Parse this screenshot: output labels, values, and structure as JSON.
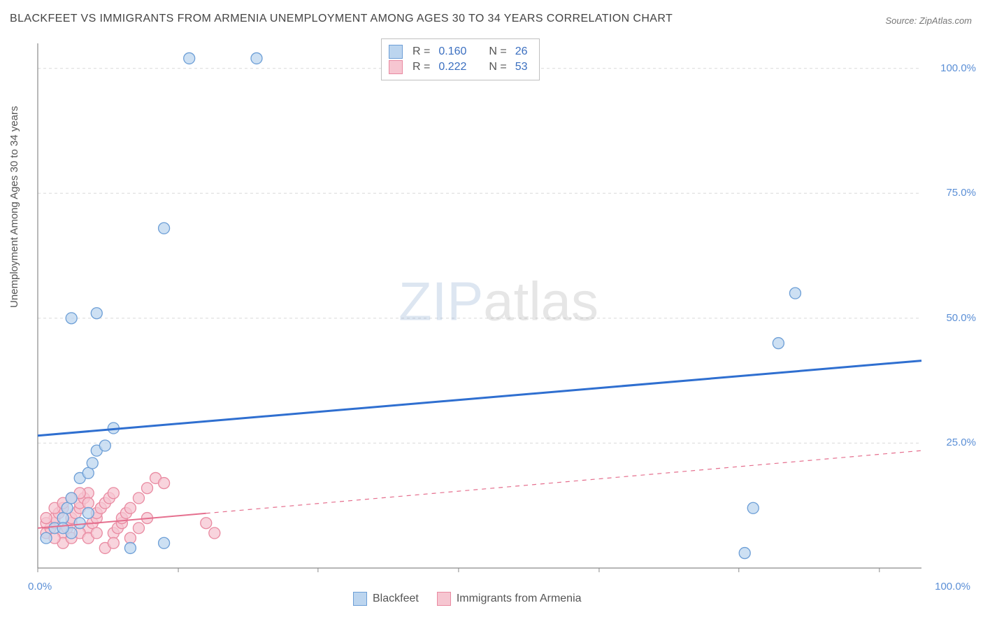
{
  "title": "BLACKFEET VS IMMIGRANTS FROM ARMENIA UNEMPLOYMENT AMONG AGES 30 TO 34 YEARS CORRELATION CHART",
  "source": "Source: ZipAtlas.com",
  "y_axis_label": "Unemployment Among Ages 30 to 34 years",
  "watermark_a": "ZIP",
  "watermark_b": "atlas",
  "chart": {
    "type": "scatter",
    "background_color": "#ffffff",
    "grid_color": "#d9d9d9",
    "axis_color": "#8a8a8a",
    "xlim": [
      0,
      105
    ],
    "ylim": [
      0,
      105
    ],
    "y_ticks": [
      25,
      50,
      75,
      100
    ],
    "y_tick_labels": [
      "25.0%",
      "50.0%",
      "75.0%",
      "100.0%"
    ],
    "x_corner_labels": [
      "0.0%",
      "100.0%"
    ],
    "x_minor_ticks": [
      0,
      16.7,
      33.3,
      50,
      66.7,
      83.3,
      100
    ],
    "tick_label_color": "#5b8fd6",
    "tick_label_fontsize": 15,
    "marker_radius": 8,
    "series": [
      {
        "name": "Blackfeet",
        "fill": "#bcd5ef",
        "stroke": "#6c9ed6",
        "swatch_fill": "#bcd5ef",
        "swatch_stroke": "#6c9ed6",
        "R": "0.160",
        "N": "26",
        "trend": {
          "x1": 0,
          "y1": 26.5,
          "x2": 105,
          "y2": 41.5,
          "solid_until_x": 105,
          "color": "#2f6fd0",
          "width": 3
        },
        "points": [
          [
            1,
            6
          ],
          [
            2,
            8
          ],
          [
            3,
            10
          ],
          [
            3.5,
            12
          ],
          [
            4,
            14
          ],
          [
            5,
            18
          ],
          [
            6,
            19
          ],
          [
            6.5,
            21
          ],
          [
            7,
            23.5
          ],
          [
            8,
            24.5
          ],
          [
            9,
            28
          ],
          [
            4,
            50
          ],
          [
            7,
            51
          ],
          [
            15,
            68
          ],
          [
            18,
            102
          ],
          [
            26,
            102
          ],
          [
            11,
            4
          ],
          [
            15,
            5
          ],
          [
            84,
            3
          ],
          [
            85,
            12
          ],
          [
            88,
            45
          ],
          [
            90,
            55
          ],
          [
            5,
            9
          ],
          [
            6,
            11
          ],
          [
            4,
            7
          ],
          [
            3,
            8
          ]
        ]
      },
      {
        "name": "Immigrants from Armenia",
        "fill": "#f6c6d1",
        "stroke": "#e98aa1",
        "swatch_fill": "#f6c6d1",
        "swatch_stroke": "#e98aa1",
        "R": "0.222",
        "N": "53",
        "trend": {
          "x1": 0,
          "y1": 8,
          "x2": 105,
          "y2": 23.5,
          "solid_until_x": 20,
          "color": "#e56f8e",
          "width": 2
        },
        "points": [
          [
            1,
            7
          ],
          [
            1.5,
            8
          ],
          [
            2,
            9
          ],
          [
            2,
            10
          ],
          [
            2.5,
            11
          ],
          [
            3,
            12
          ],
          [
            3,
            7
          ],
          [
            3.5,
            8
          ],
          [
            4,
            9
          ],
          [
            4,
            10
          ],
          [
            4.5,
            11
          ],
          [
            5,
            12
          ],
          [
            5,
            13
          ],
          [
            5.5,
            14
          ],
          [
            6,
            15
          ],
          [
            6,
            8
          ],
          [
            6.5,
            9
          ],
          [
            7,
            10
          ],
          [
            7,
            11
          ],
          [
            7.5,
            12
          ],
          [
            8,
            13
          ],
          [
            8.5,
            14
          ],
          [
            9,
            15
          ],
          [
            9,
            7
          ],
          [
            9.5,
            8
          ],
          [
            10,
            9
          ],
          [
            10,
            10
          ],
          [
            10.5,
            11
          ],
          [
            11,
            12
          ],
          [
            11,
            6
          ],
          [
            12,
            8
          ],
          [
            12,
            14
          ],
          [
            13,
            10
          ],
          [
            13,
            16
          ],
          [
            14,
            18
          ],
          [
            15,
            17
          ],
          [
            8,
            4
          ],
          [
            9,
            5
          ],
          [
            20,
            9
          ],
          [
            21,
            7
          ],
          [
            3,
            5
          ],
          [
            4,
            6
          ],
          [
            5,
            7
          ],
          [
            2,
            6
          ],
          [
            6,
            6
          ],
          [
            7,
            7
          ],
          [
            1,
            9
          ],
          [
            1,
            10
          ],
          [
            2,
            12
          ],
          [
            3,
            13
          ],
          [
            4,
            14
          ],
          [
            5,
            15
          ],
          [
            6,
            13
          ]
        ]
      }
    ]
  },
  "legend_bottom": [
    {
      "label": "Blackfeet"
    },
    {
      "label": "Immigrants from Armenia"
    }
  ],
  "legend_stats": {
    "r_label": "R =",
    "n_label": "N ="
  }
}
